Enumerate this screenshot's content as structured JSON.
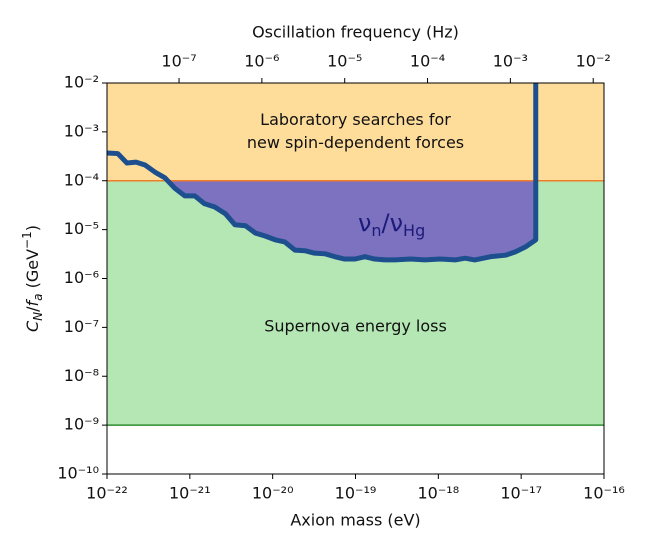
{
  "chart_data": {
    "type": "line",
    "xlabel": "Axion mass (eV)",
    "x2label": "Oscillation frequency (Hz)",
    "ylabel_parts": [
      "C",
      "N",
      "/",
      "f",
      "a",
      " (GeV",
      "−1",
      ")"
    ],
    "xlog": true,
    "ylog": true,
    "xlim": [
      1e-22,
      1e-16
    ],
    "x2lim": [
      1.35e-08,
      0.0135
    ],
    "ylim": [
      1e-10,
      0.01
    ],
    "xticks": [
      {
        "value": 1e-22,
        "label": "10⁻²²"
      },
      {
        "value": 1e-21,
        "label": "10⁻²¹"
      },
      {
        "value": 1e-20,
        "label": "10⁻²⁰"
      },
      {
        "value": 1e-19,
        "label": "10⁻¹⁹"
      },
      {
        "value": 1e-18,
        "label": "10⁻¹⁸"
      },
      {
        "value": 1e-17,
        "label": "10⁻¹⁷"
      },
      {
        "value": 1e-16,
        "label": "10⁻¹⁶"
      }
    ],
    "x2ticks": [
      {
        "value": 1e-07,
        "label": "10⁻⁷"
      },
      {
        "value": 1e-06,
        "label": "10⁻⁶"
      },
      {
        "value": 1e-05,
        "label": "10⁻⁵"
      },
      {
        "value": 0.0001,
        "label": "10⁻⁴"
      },
      {
        "value": 0.001,
        "label": "10⁻³"
      },
      {
        "value": 0.01,
        "label": "10⁻²"
      }
    ],
    "yticks": [
      {
        "value": 1e-10,
        "label": "10⁻¹⁰"
      },
      {
        "value": 1e-09,
        "label": "10⁻⁹"
      },
      {
        "value": 1e-08,
        "label": "10⁻⁸"
      },
      {
        "value": 1e-07,
        "label": "10⁻⁷"
      },
      {
        "value": 1e-06,
        "label": "10⁻⁶"
      },
      {
        "value": 1e-05,
        "label": "10⁻⁵"
      },
      {
        "value": 0.0001,
        "label": "10⁻⁴"
      },
      {
        "value": 0.001,
        "label": "10⁻³"
      },
      {
        "value": 0.01,
        "label": "10⁻²"
      }
    ],
    "regions": [
      {
        "lines": [
          "Laboratory searches for",
          "new spin-dependent forces"
        ],
        "range": [
          0.0001,
          0.01
        ],
        "color": "#fedd9b",
        "edge": "#f07c2a"
      },
      {
        "lines": [
          "Supernova energy loss"
        ],
        "range": [
          1e-09,
          0.0001
        ],
        "color": "#b5e7b4",
        "edge": "#2e8b2e"
      }
    ],
    "annotation_parts": [
      "ν",
      "n",
      "/ν",
      "Hg"
    ],
    "series": [
      {
        "color": "#1d4f8f",
        "fill": "#7d72c0",
        "x": [
          1e-22,
          1.35e-22,
          1.74e-22,
          2.24e-22,
          2.88e-22,
          3.8e-22,
          5e-22,
          6.6e-22,
          8.7e-22,
          1.15e-21,
          1.5e-21,
          2e-21,
          2.7e-21,
          3.5e-21,
          4.7e-21,
          6.2e-21,
          8.1e-21,
          1.07e-20,
          1.4e-20,
          1.86e-20,
          2.45e-20,
          3.2e-20,
          4.3e-20,
          5.6e-20,
          7.4e-20,
          9.8e-20,
          1.3e-19,
          1.7e-19,
          2.3e-19,
          3e-19,
          4.6e-19,
          6.9e-19,
          1.05e-18,
          1.6e-18,
          2.1e-18,
          2.75e-18,
          4.3e-18,
          6.5e-18,
          8.5e-18,
          1.12e-17,
          1.5e-17,
          1.5e-17
        ],
        "values": [
          0.00037,
          0.00036,
          0.00023,
          0.00024,
          0.00021,
          0.00015,
          0.000115,
          7e-05,
          4.9e-05,
          4.9e-05,
          3.4e-05,
          2.9e-05,
          2.1e-05,
          1.26e-05,
          1.2e-05,
          8.5e-06,
          7.4e-06,
          6.2e-06,
          5.6e-06,
          3.8e-06,
          3.7e-06,
          3.3e-06,
          3.2e-06,
          2.8e-06,
          2.5e-06,
          2.5e-06,
          2.8e-06,
          2.5e-06,
          2.4e-06,
          2.4e-06,
          2.5e-06,
          2.4e-06,
          2.5e-06,
          2.4e-06,
          2.6e-06,
          2.4e-06,
          2.8e-06,
          3e-06,
          3.5e-06,
          4.4e-06,
          6.2e-06,
          0.01
        ]
      }
    ]
  }
}
